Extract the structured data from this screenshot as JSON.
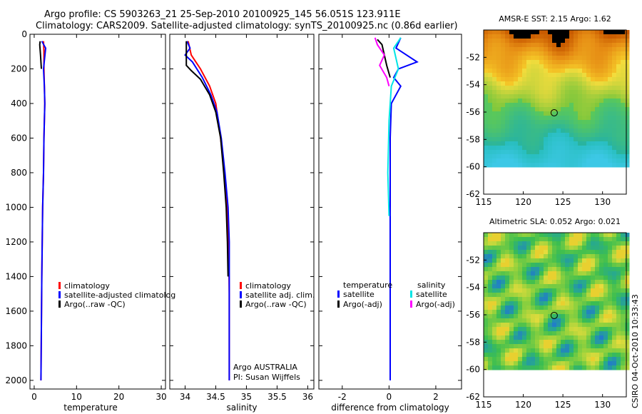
{
  "header": {
    "line1": "Argo profile: CS 5903263_21 25-Sep-2010 20100925_145 56.051S 123.911E",
    "line2": "Climatology: CARS2009. Satellite-adjusted climatology: synTS_20100925.nc (0.86d earlier)"
  },
  "colors": {
    "climatology": "#ff0000",
    "satellite": "#0000ff",
    "argo": "#000000",
    "cyan": "#00e5e5",
    "magenta": "#ff00ff"
  },
  "chart_data": [
    {
      "type": "line",
      "id": "temperature",
      "xlabel": "temperature",
      "xlim": [
        -1,
        31
      ],
      "xticks": [
        0,
        10,
        20,
        30
      ],
      "ylim": [
        2050,
        0
      ],
      "yticks": [
        0,
        200,
        400,
        600,
        800,
        1000,
        1200,
        1400,
        1600,
        1800,
        2000
      ],
      "legend": [
        "climatology",
        "satellite-adjusted climatolog",
        "Argo(..raw -QC)"
      ],
      "series": [
        {
          "name": "climatology",
          "color": "#ff0000",
          "x": [
            2.2,
            2.3,
            2.3,
            2.4,
            2.5,
            2.4,
            2.3,
            2.2,
            2.0,
            1.9,
            1.8,
            1.7,
            1.6
          ],
          "y": [
            40,
            100,
            200,
            300,
            400,
            500,
            600,
            800,
            1000,
            1200,
            1400,
            1700,
            2000
          ]
        },
        {
          "name": "satellite-adjusted climatology",
          "color": "#0000ff",
          "x": [
            1.8,
            2.7,
            2.2,
            2.4,
            2.5,
            2.4,
            2.3,
            2.2,
            2.0,
            1.9,
            1.8,
            1.7,
            1.6
          ],
          "y": [
            40,
            80,
            200,
            300,
            400,
            500,
            600,
            800,
            1000,
            1200,
            1400,
            1700,
            2000
          ]
        },
        {
          "name": "Argo(..raw -QC)",
          "color": "#000000",
          "x": [
            1.4,
            1.3,
            1.5,
            1.7
          ],
          "y": [
            40,
            60,
            120,
            200
          ]
        }
      ]
    },
    {
      "type": "line",
      "id": "salinity",
      "xlabel": "salinity",
      "xlim": [
        33.75,
        36.1
      ],
      "xticks": [
        34,
        34.5,
        35,
        35.5,
        36
      ],
      "ylim": [
        2050,
        0
      ],
      "legend": [
        "climatology",
        "satellite adj. clim.",
        "Argo(..raw -QC)"
      ],
      "annotation": [
        "Argo AUSTRALIA",
        "PI: Susan Wijffels"
      ],
      "series": [
        {
          "name": "climatology",
          "color": "#ff0000",
          "x": [
            34.05,
            34.1,
            34.25,
            34.4,
            34.5,
            34.58,
            34.64,
            34.69,
            34.71,
            34.72,
            34.72
          ],
          "y": [
            40,
            120,
            200,
            300,
            400,
            600,
            800,
            1000,
            1200,
            1500,
            2000
          ]
        },
        {
          "name": "satellite adj. clim.",
          "color": "#0000ff",
          "x": [
            34.03,
            34.08,
            34.0,
            34.12,
            34.28,
            34.42,
            34.52,
            34.59,
            34.65,
            34.7,
            34.72,
            34.72,
            34.72
          ],
          "y": [
            40,
            80,
            120,
            160,
            250,
            350,
            450,
            600,
            800,
            1000,
            1200,
            1500,
            2000
          ]
        },
        {
          "name": "Argo(..raw -QC)",
          "color": "#000000",
          "x": [
            34.02,
            34.02,
            34.1,
            34.25,
            34.4,
            34.5,
            34.58,
            34.63,
            34.67,
            34.69,
            34.7
          ],
          "y": [
            40,
            180,
            210,
            260,
            350,
            450,
            600,
            800,
            1000,
            1200,
            1400
          ]
        }
      ]
    },
    {
      "type": "line",
      "id": "difference",
      "xlabel": "difference from climatology",
      "xlim": [
        -3,
        3.1
      ],
      "xticks": [
        -2,
        0,
        2
      ],
      "ylim": [
        2050,
        0
      ],
      "legend_titles": [
        "temperature",
        "salinity"
      ],
      "legend": [
        "satellite",
        "Argo(-adj)",
        "satellite",
        "Argo(-adj)"
      ],
      "series": [
        {
          "name": "temperature satellite",
          "color": "#0000ff",
          "x": [
            0.5,
            0.3,
            1.2,
            0.4,
            0.2,
            0.5,
            0.1,
            0.05,
            0.05,
            0.05
          ],
          "y": [
            20,
            80,
            160,
            200,
            250,
            300,
            400,
            600,
            1000,
            2000
          ]
        },
        {
          "name": "temperature Argo(-adj)",
          "color": "#000000",
          "x": [
            -0.5,
            -0.3,
            -0.2,
            -0.1,
            0.05
          ],
          "y": [
            30,
            60,
            120,
            180,
            250
          ]
        },
        {
          "name": "salinity satellite",
          "color": "#00e5e5",
          "x": [
            0.5,
            0.2,
            0.4,
            0.1,
            0.0,
            -0.05,
            0.0
          ],
          "y": [
            20,
            80,
            200,
            300,
            500,
            800,
            1050
          ]
        },
        {
          "name": "salinity Argo(-adj)",
          "color": "#ff00ff",
          "x": [
            -0.6,
            -0.5,
            -0.2,
            -0.4,
            -0.1,
            0.0
          ],
          "y": [
            20,
            60,
            120,
            180,
            250,
            300
          ]
        }
      ]
    },
    {
      "type": "heatmap",
      "id": "sst",
      "title": "AMSR-E SST: 2.15 Argo: 1.62",
      "xlim": [
        115,
        133
      ],
      "ylim": [
        -62,
        -50
      ],
      "xticks": [
        115,
        120,
        125,
        130
      ],
      "yticks": [
        -52,
        -54,
        -56,
        -58,
        -60,
        -62
      ],
      "data_extent_y": [
        -60,
        -50
      ],
      "marker": {
        "lon": 123.9,
        "lat": -56.05
      }
    },
    {
      "type": "heatmap",
      "id": "sla",
      "title": "Altimetric SLA: 0.052 Argo: 0.021",
      "xlim": [
        115,
        133
      ],
      "ylim": [
        -62,
        -50
      ],
      "xticks": [
        115,
        120,
        125,
        130
      ],
      "yticks": [
        -52,
        -54,
        -56,
        -58,
        -60,
        -62
      ],
      "data_extent_y": [
        -60,
        -50
      ],
      "marker": {
        "lon": 123.9,
        "lat": -56.05
      }
    }
  ],
  "footer": {
    "stamp": "CSIRO 04-Oct-2010 10:33:43"
  }
}
